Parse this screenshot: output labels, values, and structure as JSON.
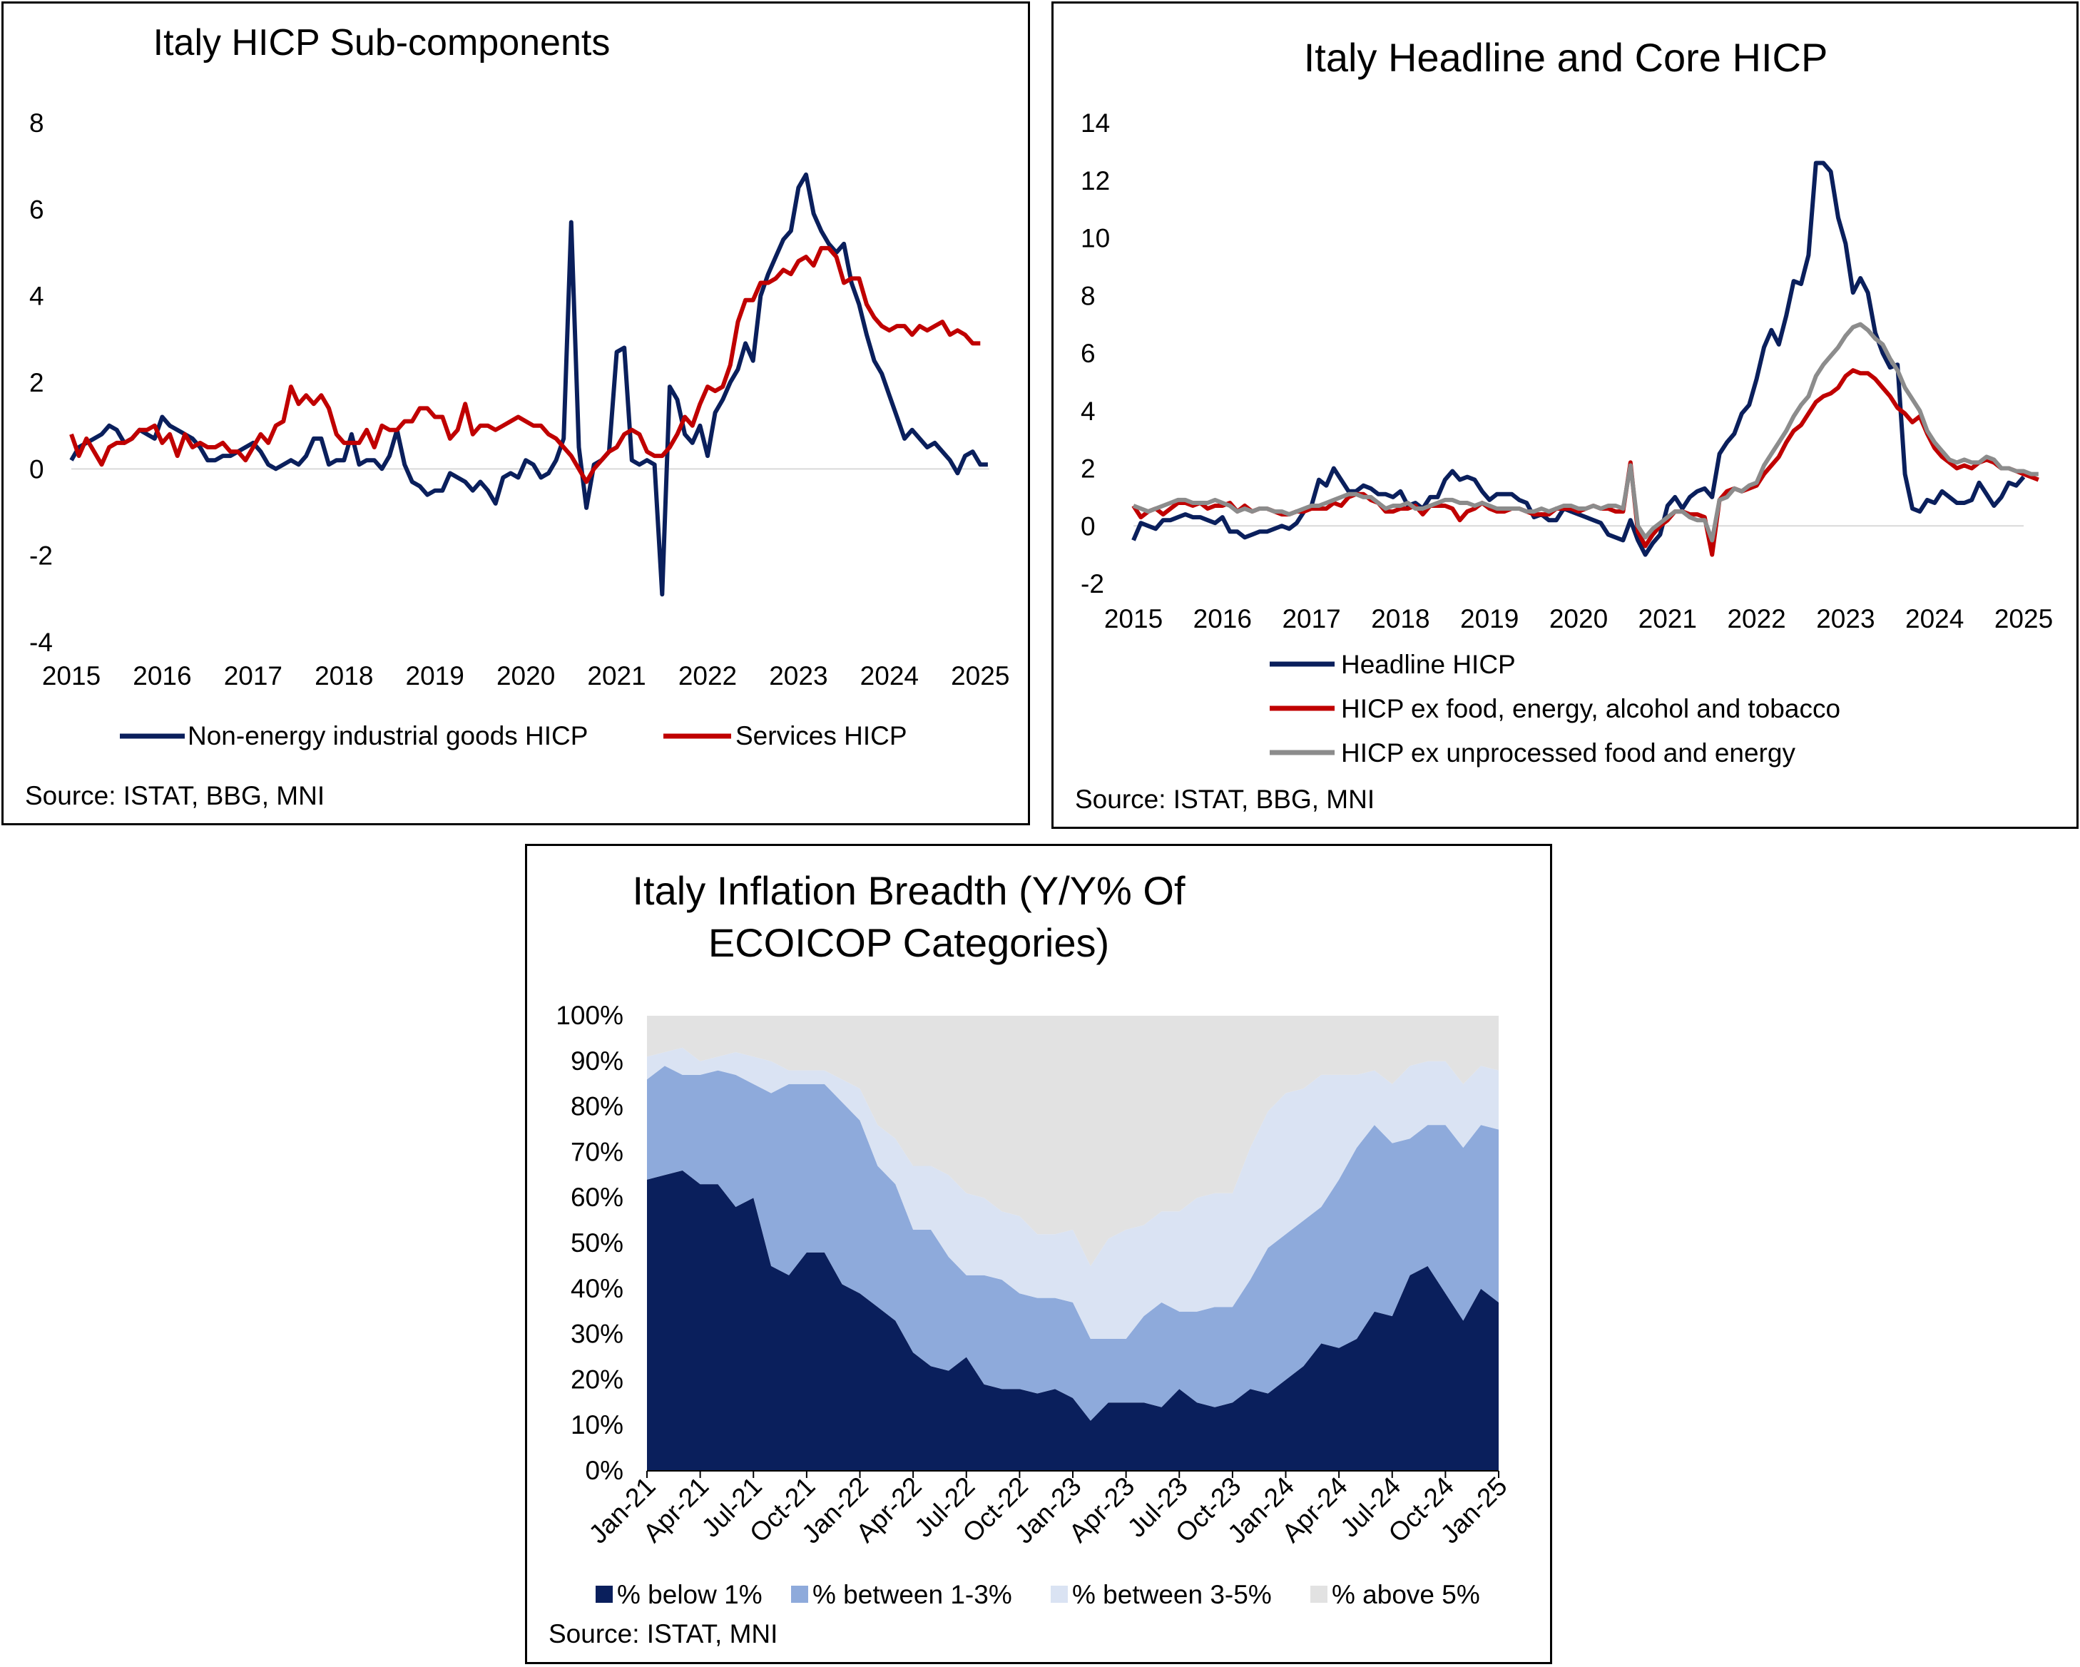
{
  "charts": [
    {
      "type": "line",
      "title": "Italy HICP Sub-components",
      "x_start": 2015.0,
      "x_step": 0.0833333,
      "xlim": [
        2015.0,
        2025.1
      ],
      "ylim": [
        -4,
        8
      ],
      "y_ticks": [
        8,
        6,
        4,
        2,
        0,
        -2,
        -4
      ],
      "x_ticks": [
        2015,
        2016,
        2017,
        2018,
        2019,
        2020,
        2021,
        2022,
        2023,
        2024,
        2025
      ],
      "series": [
        {
          "name": "Non-energy industrial goods HICP",
          "color": "#0a1f5c",
          "values": [
            0.2,
            0.5,
            0.6,
            0.7,
            0.8,
            1.0,
            0.9,
            0.6,
            0.7,
            0.9,
            0.8,
            0.7,
            1.2,
            1.0,
            0.9,
            0.8,
            0.7,
            0.5,
            0.2,
            0.2,
            0.3,
            0.3,
            0.4,
            0.5,
            0.6,
            0.4,
            0.1,
            0.0,
            0.1,
            0.2,
            0.1,
            0.3,
            0.7,
            0.7,
            0.1,
            0.2,
            0.2,
            0.8,
            0.1,
            0.2,
            0.2,
            0.0,
            0.3,
            0.9,
            0.1,
            -0.3,
            -0.4,
            -0.6,
            -0.5,
            -0.5,
            -0.1,
            -0.2,
            -0.3,
            -0.5,
            -0.3,
            -0.5,
            -0.8,
            -0.2,
            -0.1,
            -0.2,
            0.2,
            0.1,
            -0.2,
            -0.1,
            0.2,
            0.7,
            5.7,
            0.5,
            -0.9,
            0.1,
            0.2,
            0.4,
            2.7,
            2.8,
            0.2,
            0.1,
            0.2,
            0.1,
            -2.9,
            1.9,
            1.6,
            0.8,
            0.6,
            1.0,
            0.3,
            1.3,
            1.6,
            2.0,
            2.3,
            2.9,
            2.5,
            4.0,
            4.5,
            4.9,
            5.3,
            5.5,
            6.5,
            6.8,
            5.9,
            5.5,
            5.2,
            5.0,
            5.2,
            4.3,
            3.8,
            3.1,
            2.5,
            2.2,
            1.7,
            1.2,
            0.7,
            0.9,
            0.7,
            0.5,
            0.6,
            0.4,
            0.2,
            -0.1,
            0.3,
            0.4,
            0.1,
            0.1
          ]
        },
        {
          "name": "Services HICP",
          "color": "#c00000",
          "values": [
            0.8,
            0.3,
            0.7,
            0.4,
            0.1,
            0.5,
            0.6,
            0.6,
            0.7,
            0.9,
            0.9,
            1.0,
            0.6,
            0.8,
            0.3,
            0.8,
            0.5,
            0.6,
            0.5,
            0.5,
            0.6,
            0.4,
            0.4,
            0.2,
            0.5,
            0.8,
            0.6,
            1.0,
            1.1,
            1.9,
            1.5,
            1.7,
            1.5,
            1.7,
            1.4,
            0.8,
            0.6,
            0.6,
            0.6,
            0.9,
            0.5,
            1.0,
            0.9,
            0.9,
            1.1,
            1.1,
            1.4,
            1.4,
            1.2,
            1.2,
            0.7,
            0.9,
            1.5,
            0.8,
            1.0,
            1.0,
            0.9,
            1.0,
            1.1,
            1.2,
            1.1,
            1.0,
            1.0,
            0.8,
            0.7,
            0.5,
            0.3,
            0.0,
            -0.3,
            0.0,
            0.2,
            0.4,
            0.5,
            0.8,
            0.9,
            0.8,
            0.4,
            0.3,
            0.3,
            0.5,
            0.8,
            1.2,
            1.0,
            1.5,
            1.9,
            1.8,
            1.9,
            2.4,
            3.4,
            3.9,
            3.9,
            4.3,
            4.3,
            4.4,
            4.6,
            4.5,
            4.8,
            4.9,
            4.7,
            5.1,
            5.1,
            4.9,
            4.3,
            4.4,
            4.4,
            3.8,
            3.5,
            3.3,
            3.2,
            3.3,
            3.3,
            3.1,
            3.3,
            3.2,
            3.3,
            3.4,
            3.1,
            3.2,
            3.1,
            2.9,
            2.9
          ]
        }
      ],
      "legend": [
        "Non-energy industrial goods HICP",
        "Services HICP"
      ],
      "source": "Source: ISTAT, BBG, MNI"
    },
    {
      "type": "line",
      "title": "Italy Headline and Core HICP",
      "x_start": 2015.0,
      "x_step": 0.0833333,
      "xlim": [
        2015.0,
        2025.0
      ],
      "ylim": [
        -2,
        14
      ],
      "y_ticks": [
        14,
        12,
        10,
        8,
        6,
        4,
        2,
        0,
        -2
      ],
      "x_ticks": [
        2015,
        2016,
        2017,
        2018,
        2019,
        2020,
        2021,
        2022,
        2023,
        2024,
        2025
      ],
      "series": [
        {
          "name": "Headline HICP",
          "color": "#0a1f5c",
          "values": [
            -0.5,
            0.1,
            0.0,
            -0.1,
            0.2,
            0.2,
            0.3,
            0.4,
            0.3,
            0.3,
            0.2,
            0.1,
            0.3,
            -0.2,
            -0.2,
            -0.4,
            -0.3,
            -0.2,
            -0.2,
            -0.1,
            0.0,
            -0.1,
            0.1,
            0.5,
            0.7,
            1.6,
            1.4,
            2.0,
            1.6,
            1.2,
            1.2,
            1.4,
            1.3,
            1.1,
            1.1,
            1.0,
            1.2,
            0.7,
            0.8,
            0.6,
            1.0,
            1.0,
            1.6,
            1.9,
            1.6,
            1.7,
            1.6,
            1.2,
            0.9,
            1.1,
            1.1,
            1.1,
            0.9,
            0.8,
            0.3,
            0.4,
            0.2,
            0.2,
            0.6,
            0.5,
            0.4,
            0.3,
            0.2,
            0.1,
            -0.3,
            -0.4,
            -0.5,
            0.2,
            -0.5,
            -1.0,
            -0.6,
            -0.3,
            0.7,
            1.0,
            0.6,
            1.0,
            1.2,
            1.3,
            1.0,
            2.5,
            2.9,
            3.2,
            3.9,
            4.2,
            5.1,
            6.2,
            6.8,
            6.3,
            7.3,
            8.5,
            8.4,
            9.4,
            12.6,
            12.6,
            12.3,
            10.7,
            9.8,
            8.1,
            8.6,
            8.1,
            6.7,
            6.0,
            5.5,
            5.6,
            1.8,
            0.6,
            0.5,
            0.9,
            0.8,
            1.2,
            1.0,
            0.8,
            0.8,
            0.9,
            1.5,
            1.1,
            0.7,
            1.0,
            1.5,
            1.4,
            1.7
          ]
        },
        {
          "name": "HICP ex food, energy, alcohol and tobacco",
          "color": "#c00000",
          "values": [
            0.7,
            0.3,
            0.5,
            0.6,
            0.4,
            0.6,
            0.8,
            0.8,
            0.7,
            0.8,
            0.6,
            0.7,
            0.7,
            0.8,
            0.5,
            0.7,
            0.5,
            0.6,
            0.6,
            0.5,
            0.4,
            0.4,
            0.5,
            0.5,
            0.6,
            0.6,
            0.6,
            0.8,
            0.7,
            1.0,
            1.1,
            1.1,
            0.9,
            0.8,
            0.5,
            0.5,
            0.6,
            0.6,
            0.7,
            0.4,
            0.7,
            0.7,
            0.7,
            0.6,
            0.2,
            0.5,
            0.6,
            0.8,
            0.6,
            0.5,
            0.5,
            0.6,
            0.6,
            0.5,
            0.4,
            0.4,
            0.4,
            0.6,
            0.6,
            0.6,
            0.5,
            0.6,
            0.7,
            0.6,
            0.6,
            0.5,
            0.5,
            2.2,
            -0.2,
            -0.7,
            -0.3,
            0.0,
            0.2,
            0.5,
            0.5,
            0.4,
            0.4,
            0.3,
            -1.0,
            0.9,
            1.2,
            1.3,
            1.2,
            1.3,
            1.4,
            1.8,
            2.1,
            2.4,
            2.9,
            3.3,
            3.5,
            3.9,
            4.3,
            4.5,
            4.6,
            4.8,
            5.2,
            5.4,
            5.3,
            5.3,
            5.1,
            4.8,
            4.5,
            4.1,
            3.9,
            3.6,
            3.8,
            3.2,
            2.7,
            2.4,
            2.2,
            2.0,
            2.1,
            2.0,
            2.2,
            2.3,
            2.2,
            2.0,
            2.0,
            1.9,
            1.8,
            1.7,
            1.6
          ]
        },
        {
          "name": "HICP ex unprocessed food and energy",
          "color": "#8c8c8c",
          "values": [
            0.7,
            0.6,
            0.5,
            0.6,
            0.7,
            0.8,
            0.9,
            0.9,
            0.8,
            0.8,
            0.8,
            0.9,
            0.8,
            0.7,
            0.5,
            0.6,
            0.5,
            0.6,
            0.6,
            0.5,
            0.5,
            0.4,
            0.5,
            0.6,
            0.7,
            0.7,
            0.8,
            0.9,
            1.0,
            1.1,
            1.1,
            1.0,
            1.0,
            0.8,
            0.6,
            0.7,
            0.7,
            0.8,
            0.6,
            0.6,
            0.7,
            0.8,
            0.9,
            0.9,
            0.8,
            0.8,
            0.7,
            0.8,
            0.7,
            0.6,
            0.6,
            0.6,
            0.6,
            0.5,
            0.5,
            0.6,
            0.5,
            0.6,
            0.7,
            0.7,
            0.6,
            0.6,
            0.7,
            0.6,
            0.7,
            0.7,
            0.6,
            2.1,
            0.0,
            -0.4,
            -0.1,
            0.1,
            0.3,
            0.5,
            0.5,
            0.3,
            0.2,
            0.2,
            -0.5,
            0.9,
            1.0,
            1.3,
            1.2,
            1.4,
            1.5,
            2.1,
            2.5,
            2.9,
            3.3,
            3.8,
            4.2,
            4.5,
            5.2,
            5.6,
            5.9,
            6.2,
            6.6,
            6.9,
            7.0,
            6.8,
            6.5,
            6.3,
            5.8,
            5.4,
            4.8,
            4.4,
            4.0,
            3.3,
            2.9,
            2.6,
            2.3,
            2.2,
            2.3,
            2.2,
            2.2,
            2.4,
            2.3,
            2.0,
            2.0,
            1.9,
            1.9,
            1.8,
            1.8
          ]
        }
      ],
      "legend": [
        "Headline HICP",
        "HICP ex food, energy, alcohol and tobacco",
        "HICP ex unprocessed food and energy"
      ],
      "source": "Source: ISTAT, BBG, MNI"
    },
    {
      "type": "area",
      "title_lines": [
        "Italy Inflation Breadth (Y/Y% Of",
        "ECOICOP Categories)"
      ],
      "categories_count": 49,
      "x_ticks": [
        "Jan-21",
        "Apr-21",
        "Jul-21",
        "Oct-21",
        "Jan-22",
        "Apr-22",
        "Jul-22",
        "Oct-22",
        "Jan-23",
        "Apr-23",
        "Jul-23",
        "Oct-23",
        "Jan-24",
        "Apr-24",
        "Jul-24",
        "Oct-24",
        "Jan-25"
      ],
      "ylim": [
        0,
        100
      ],
      "y_ticks": [
        "100%",
        "90%",
        "80%",
        "70%",
        "60%",
        "50%",
        "40%",
        "30%",
        "20%",
        "10%",
        "0%"
      ],
      "series": [
        {
          "name": "% below 1%",
          "color": "#0a1f5c",
          "values": [
            64,
            65,
            66,
            63,
            63,
            58,
            60,
            45,
            43,
            48,
            48,
            41,
            39,
            36,
            33,
            26,
            23,
            22,
            25,
            19,
            18,
            18,
            17,
            18,
            16,
            11,
            15,
            15,
            15,
            14,
            18,
            15,
            14,
            15,
            18,
            17,
            20,
            23,
            28,
            27,
            29,
            35,
            34,
            43,
            45,
            39,
            33,
            40,
            37
          ]
        },
        {
          "name": "% between 1-3%",
          "color": "#8eaadb",
          "values": [
            22,
            24,
            21,
            24,
            25,
            29,
            25,
            38,
            42,
            37,
            37,
            40,
            38,
            31,
            30,
            27,
            30,
            25,
            18,
            24,
            24,
            21,
            21,
            20,
            21,
            18,
            14,
            14,
            19,
            23,
            17,
            20,
            22,
            21,
            24,
            32,
            32,
            32,
            30,
            37,
            42,
            41,
            38,
            30,
            31,
            37,
            38,
            36,
            38
          ]
        },
        {
          "name": "% between 3-5%",
          "color": "#dae3f3",
          "values": [
            5,
            3,
            6,
            3,
            3,
            5,
            6,
            7,
            3,
            3,
            3,
            5,
            7,
            9,
            10,
            14,
            14,
            18,
            18,
            17,
            15,
            17,
            14,
            14,
            16,
            16,
            22,
            24,
            20,
            20,
            22,
            25,
            25,
            25,
            29,
            30,
            31,
            29,
            29,
            23,
            16,
            12,
            13,
            16,
            14,
            14,
            14,
            13,
            13
          ]
        },
        {
          "name": "% above 5%",
          "color": "#e2e2e2",
          "values": [
            9,
            8,
            7,
            10,
            9,
            8,
            9,
            10,
            12,
            12,
            12,
            14,
            16,
            24,
            27,
            33,
            33,
            35,
            39,
            40,
            43,
            44,
            48,
            48,
            47,
            55,
            49,
            47,
            46,
            43,
            43,
            40,
            39,
            39,
            29,
            21,
            17,
            16,
            13,
            13,
            13,
            12,
            15,
            11,
            10,
            10,
            15,
            11,
            12
          ]
        }
      ],
      "legend": [
        "% below 1%",
        "% between 1-3%",
        "% between 3-5%",
        "% above 5%"
      ],
      "source": "Source: ISTAT, MNI"
    }
  ]
}
